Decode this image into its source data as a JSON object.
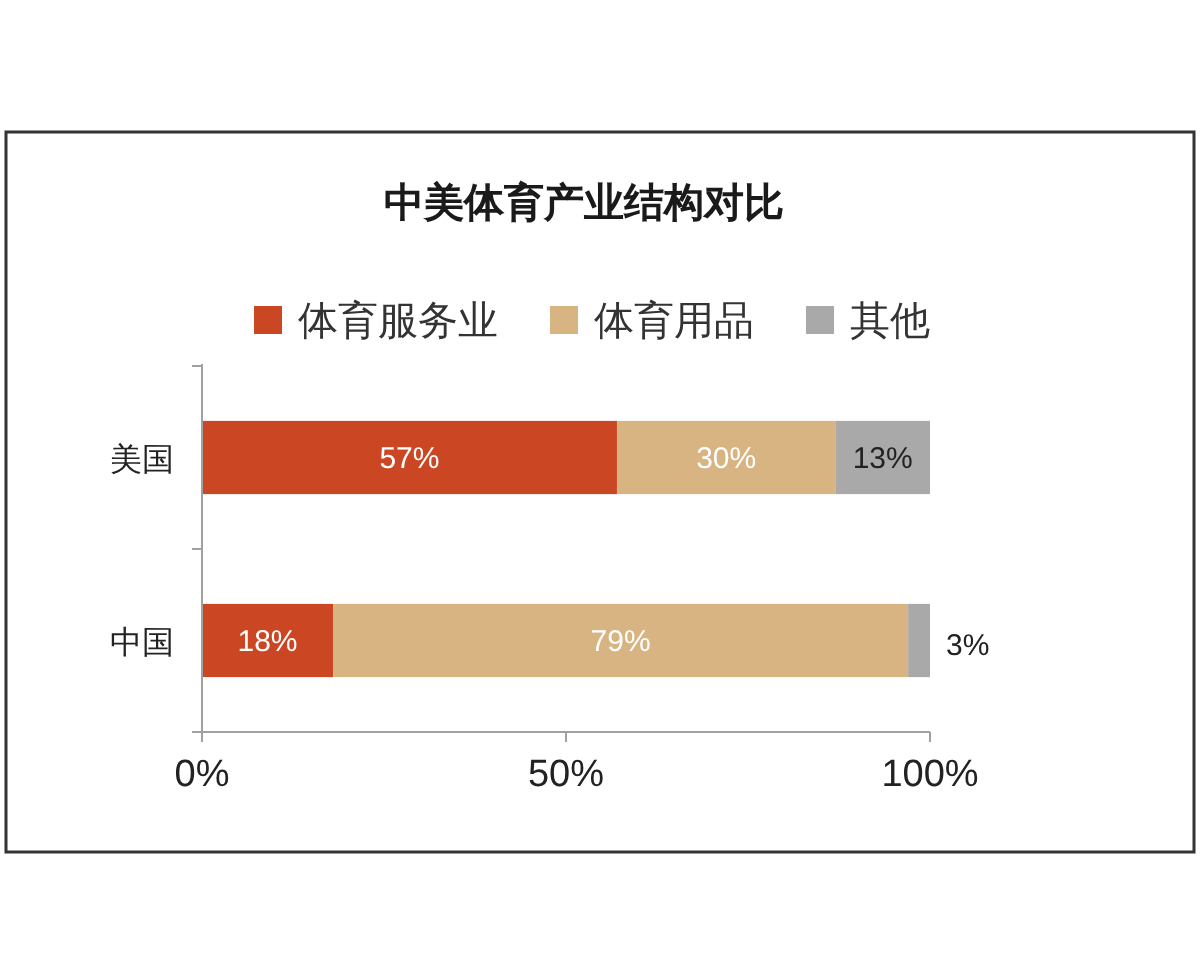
{
  "chart_data": {
    "type": "bar",
    "orientation": "horizontal",
    "stacked": true,
    "title": "中美体育产业结构对比",
    "categories": [
      "美国",
      "中国"
    ],
    "series": [
      {
        "name": "体育服务业",
        "color": "#cb4723",
        "values": [
          57,
          18
        ],
        "value_labels": [
          "57%",
          "18%"
        ]
      },
      {
        "name": "体育用品",
        "color": "#d8b482",
        "values": [
          30,
          79
        ],
        "value_labels": [
          "30%",
          "79%"
        ]
      },
      {
        "name": "其他",
        "color": "#a9a9a9",
        "values": [
          13,
          3
        ],
        "value_labels": [
          "13%",
          "3%"
        ]
      }
    ],
    "xlim": [
      0,
      100
    ],
    "xticks": [
      {
        "value": 0,
        "label": "0%"
      },
      {
        "value": 50,
        "label": "50%"
      },
      {
        "value": 100,
        "label": "100%"
      }
    ],
    "legend": "top"
  }
}
